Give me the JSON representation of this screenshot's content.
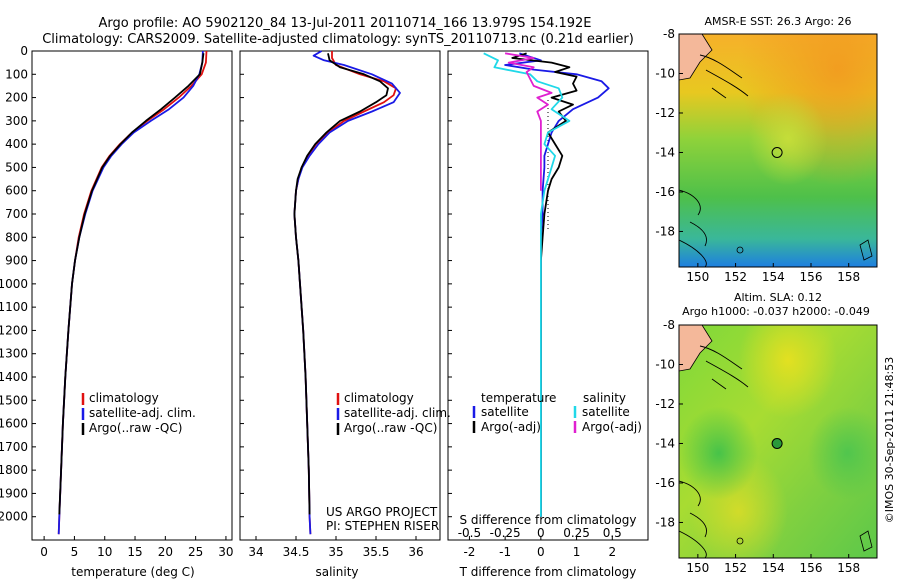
{
  "header": {
    "line1": "Argo profile: AO 5902120_84 13-Jul-2011 20110714_166 13.979S 154.192E",
    "line2": "Climatology: CARS2009. Satellite-adjusted climatology: synTS_20110713.nc (0.21d earlier)"
  },
  "footer_credit": "©IMOS 30-Sep-2011 21:48:53",
  "colors": {
    "clim": "#e01010",
    "sat": "#1a1ae6",
    "argo": "#000000",
    "sat_s": "#20d8e8",
    "argo_s": "#e020d0"
  },
  "chart_data": [
    {
      "type": "line",
      "xlabel": "temperature (deg C)",
      "ylabel": "",
      "xlim": [
        -2,
        31
      ],
      "ylim": [
        2100,
        0
      ],
      "xticks": [
        "0",
        "5",
        "10",
        "15",
        "20",
        "25",
        "30"
      ],
      "xtick_values": [
        0,
        5,
        10,
        15,
        20,
        25,
        30
      ],
      "yticks": [
        "0",
        "100",
        "200",
        "300",
        "400",
        "500",
        "600",
        "700",
        "800",
        "900",
        "1000",
        "1100",
        "1200",
        "1300",
        "1400",
        "1500",
        "1600",
        "1700",
        "1800",
        "1900",
        "2000"
      ],
      "ytick_values": [
        0,
        100,
        200,
        300,
        400,
        500,
        600,
        700,
        800,
        900,
        1000,
        1100,
        1200,
        1300,
        1400,
        1500,
        1600,
        1700,
        1800,
        1900,
        2000
      ],
      "legend": [
        "climatology",
        "satellite-adj. clim.",
        "Argo(..raw -QC)"
      ],
      "series": [
        {
          "name": "climatology",
          "color_key": "clim",
          "depth": [
            0,
            50,
            100,
            150,
            200,
            250,
            300,
            350,
            400,
            450,
            500,
            600,
            700,
            800,
            900,
            1000,
            1200,
            1400,
            1600,
            1800,
            2000,
            2075
          ],
          "values": [
            26.8,
            26.7,
            26.0,
            24.3,
            22.2,
            19.8,
            17.0,
            14.5,
            12.5,
            10.8,
            9.5,
            7.8,
            6.6,
            5.7,
            5.1,
            4.6,
            4.0,
            3.5,
            3.1,
            2.8,
            2.5,
            2.4
          ]
        },
        {
          "name": "satellite-adj. clim.",
          "color_key": "sat",
          "depth": [
            0,
            50,
            100,
            150,
            200,
            250,
            300,
            350,
            400,
            450,
            500,
            600,
            700,
            800,
            900,
            1000,
            1200,
            1400,
            1600,
            1800,
            2000,
            2075
          ],
          "values": [
            26.2,
            26.1,
            25.6,
            24.6,
            23.0,
            20.6,
            17.6,
            14.8,
            12.8,
            11.1,
            9.8,
            8.0,
            6.8,
            5.8,
            5.1,
            4.6,
            4.0,
            3.5,
            3.1,
            2.8,
            2.5,
            2.4
          ]
        },
        {
          "name": "Argo(..raw -QC)",
          "color_key": "argo",
          "depth": [
            10,
            50,
            100,
            150,
            200,
            250,
            300,
            350,
            400,
            450,
            500,
            600,
            700,
            800,
            900,
            1000,
            1200,
            1400,
            1600,
            1800,
            1990
          ],
          "values": [
            26.3,
            26.1,
            25.7,
            23.8,
            21.6,
            19.3,
            16.8,
            14.5,
            12.6,
            10.9,
            9.6,
            7.9,
            6.7,
            5.8,
            5.1,
            4.6,
            4.0,
            3.5,
            3.1,
            2.8,
            2.5
          ]
        }
      ]
    },
    {
      "type": "line",
      "xlabel": "salinity",
      "xlim": [
        33.8,
        36.3
      ],
      "ylim": [
        2100,
        0
      ],
      "xticks": [
        "34",
        "34.5",
        "35",
        "35.5",
        "36"
      ],
      "xtick_values": [
        34,
        34.5,
        35,
        35.5,
        36
      ],
      "legend": [
        "climatology",
        "satellite-adj. clim.",
        "Argo(..raw -QC)"
      ],
      "annotation": [
        "US ARGO PROJECT",
        "PI: STEPHEN RISER"
      ],
      "series": [
        {
          "name": "climatology",
          "color_key": "clim",
          "depth": [
            0,
            30,
            60,
            100,
            130,
            160,
            190,
            220,
            260,
            300,
            350,
            400,
            450,
            500,
            550,
            600,
            700,
            800,
            900,
            1000,
            1200,
            1400,
            1600,
            1800,
            2000,
            2075
          ],
          "values": [
            34.95,
            34.95,
            35.0,
            35.3,
            35.6,
            35.75,
            35.72,
            35.6,
            35.35,
            35.1,
            34.9,
            34.75,
            34.65,
            34.57,
            34.53,
            34.5,
            34.48,
            34.5,
            34.53,
            34.55,
            34.59,
            34.62,
            34.64,
            34.66,
            34.67,
            34.68
          ]
        },
        {
          "name": "satellite-adj. clim.",
          "color_key": "sat",
          "depth": [
            0,
            20,
            40,
            60,
            100,
            140,
            180,
            220,
            260,
            300,
            350,
            400,
            450,
            500,
            550,
            600,
            700,
            800,
            900,
            1000,
            1200,
            1400,
            1600,
            1800,
            2000,
            2075
          ],
          "values": [
            34.82,
            34.72,
            34.85,
            35.1,
            35.45,
            35.7,
            35.8,
            35.72,
            35.45,
            35.15,
            34.92,
            34.78,
            34.67,
            34.58,
            34.53,
            34.5,
            34.48,
            34.5,
            34.53,
            34.55,
            34.59,
            34.62,
            34.64,
            34.66,
            34.67,
            34.68
          ]
        },
        {
          "name": "Argo(..raw -QC)",
          "color_key": "argo",
          "depth": [
            10,
            40,
            70,
            100,
            130,
            160,
            190,
            220,
            260,
            300,
            350,
            400,
            450,
            500,
            550,
            600,
            700,
            800,
            900,
            1000,
            1200,
            1400,
            1600,
            1800,
            1990
          ],
          "values": [
            34.9,
            34.92,
            35.05,
            35.35,
            35.55,
            35.65,
            35.63,
            35.5,
            35.3,
            35.05,
            34.88,
            34.74,
            34.64,
            34.57,
            34.52,
            34.5,
            34.48,
            34.5,
            34.53,
            34.55,
            34.59,
            34.62,
            34.64,
            34.66,
            34.67
          ]
        }
      ]
    },
    {
      "type": "line",
      "xlabel": "T difference from climatology",
      "xlabel_top": "S difference from climatology",
      "xlim": [
        -2.6,
        3.0
      ],
      "ylim": [
        2100,
        0
      ],
      "xticks": [
        "-2",
        "-1",
        "0",
        "1",
        "2"
      ],
      "xtick_values": [
        -2,
        -1,
        0,
        1,
        2
      ],
      "sticks": [
        "-0.5",
        "-0.25",
        "0",
        "0.25",
        "0.5"
      ],
      "stick_values": [
        -2,
        -1,
        0,
        1,
        2
      ],
      "legend_headers": [
        "temperature",
        "salinity"
      ],
      "legend": [
        "satellite",
        "Argo(-adj)",
        "satellite",
        "Argo(-adj)"
      ],
      "series": [
        {
          "name": "temperature satellite",
          "color_key": "sat",
          "depth": [
            10,
            40,
            60,
            80,
            100,
            130,
            160,
            200,
            250,
            300,
            350,
            400,
            450,
            500,
            600,
            700,
            800,
            900,
            1000,
            1200,
            1500,
            1800,
            2000
          ],
          "values": [
            -0.6,
            0.0,
            -1.0,
            -0.2,
            1.0,
            1.7,
            1.9,
            1.6,
            0.9,
            0.5,
            0.3,
            0.2,
            0.1,
            0.1,
            0.05,
            0.05,
            0.0,
            0.0,
            0.0,
            0.0,
            0.0,
            0.0,
            0.0
          ]
        },
        {
          "name": "temperature Argo(-adj)",
          "color_key": "argo",
          "depth": [
            10,
            30,
            50,
            70,
            90,
            110,
            140,
            170,
            200,
            230,
            260,
            300,
            350,
            400,
            450,
            500,
            550,
            600,
            700,
            800,
            900,
            1000,
            1200,
            1500,
            1800,
            2000
          ],
          "values": [
            -0.4,
            -0.8,
            0.3,
            0.8,
            0.4,
            1.0,
            0.9,
            1.0,
            0.3,
            0.9,
            0.5,
            0.7,
            0.2,
            0.4,
            0.6,
            0.5,
            0.3,
            0.2,
            0.1,
            0.05,
            0.0,
            0.0,
            0.0,
            0.0,
            0.0,
            0.0
          ]
        },
        {
          "name": "salinity satellite",
          "color_key": "sat_s",
          "depth": [
            10,
            40,
            70,
            100,
            130,
            160,
            200,
            250,
            300,
            350,
            400,
            450,
            500,
            550,
            600,
            700,
            800,
            900,
            1000,
            1200,
            1500,
            1800,
            2000
          ],
          "values": [
            -1.6,
            -1.2,
            -1.3,
            -0.3,
            -0.1,
            0.5,
            0.6,
            0.3,
            0.8,
            0.2,
            0.1,
            0.4,
            0.3,
            0.2,
            0.1,
            0.0,
            0.0,
            0.0,
            0.0,
            0.0,
            0.0,
            0.0,
            0.0
          ]
        },
        {
          "name": "salinity Argo(-adj)",
          "color_key": "argo_s",
          "depth": [
            10,
            30,
            50,
            70,
            90,
            120,
            150,
            180,
            200,
            230,
            260,
            300,
            350,
            400,
            450,
            500,
            550,
            600
          ],
          "values": [
            -1.0,
            -0.2,
            -0.9,
            -0.2,
            -0.4,
            -0.3,
            -0.2,
            0.3,
            -0.1,
            0.2,
            -0.1,
            0.0,
            0.0,
            0.0,
            0.0,
            0.0,
            0.0,
            0.0
          ]
        }
      ]
    },
    {
      "type": "heatmap",
      "title": "AMSR-E SST: 26.3 Argo: 26",
      "xlim": [
        149,
        159.5
      ],
      "ylim": [
        -19.8,
        -8
      ],
      "xticks": [
        "150",
        "152",
        "154",
        "156",
        "158"
      ],
      "xtick_values": [
        150,
        152,
        154,
        156,
        158
      ],
      "yticks": [
        "-8",
        "-10",
        "-12",
        "-14",
        "-16",
        "-18"
      ],
      "ytick_values": [
        -8,
        -10,
        -12,
        -14,
        -16,
        -18
      ],
      "marker": [
        154.2,
        -14.0
      ]
    },
    {
      "type": "heatmap",
      "title": "Altim. SLA: 0.12",
      "subtitle": "Argo h1000: -0.037 h2000: -0.049",
      "xlim": [
        149,
        159.5
      ],
      "ylim": [
        -19.8,
        -8
      ],
      "xticks": [
        "150",
        "152",
        "154",
        "156",
        "158"
      ],
      "xtick_values": [
        150,
        152,
        154,
        156,
        158
      ],
      "yticks": [
        "-8",
        "-10",
        "-12",
        "-14",
        "-16",
        "-18"
      ],
      "ytick_values": [
        -8,
        -10,
        -12,
        -14,
        -16,
        -18
      ],
      "marker": [
        154.2,
        -14.0
      ]
    }
  ]
}
